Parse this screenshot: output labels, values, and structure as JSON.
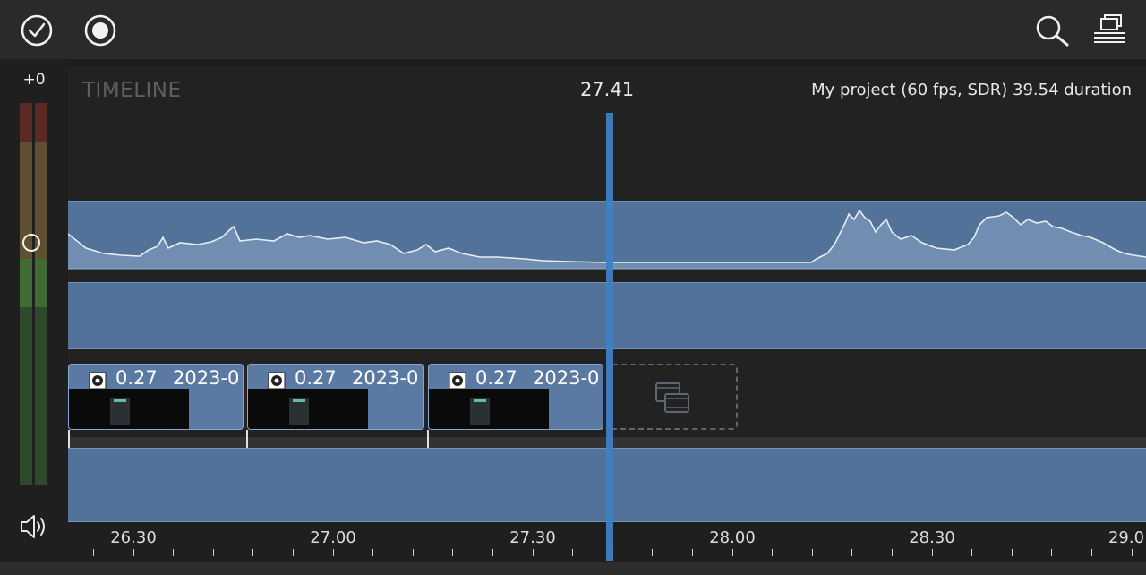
{
  "toolbar": {
    "done_icon": "checkmark-circle-icon",
    "record_icon": "record-circle-icon",
    "search_icon": "magnifier-icon",
    "layout_icon": "stacked-layers-icon"
  },
  "meter": {
    "gain_label": "+0",
    "colors": {
      "red": "#5c2a26",
      "yellow": "#5e5030",
      "green": "#2d4a2a"
    }
  },
  "timeline": {
    "title": "TIMELINE",
    "current_time": "27.41",
    "project_info": "My project (60 fps, SDR)  39.54 duration"
  },
  "clips": [
    {
      "duration": "0.27",
      "date": "2023-0"
    },
    {
      "duration": "0.27",
      "date": "2023-0"
    },
    {
      "duration": "0.27",
      "date": "2023-0"
    }
  ],
  "ruler": {
    "labels": [
      "26.30",
      "27.00",
      "27.30",
      "28.00",
      "28.30",
      "29.0"
    ]
  },
  "colors": {
    "track_blue": "#53729a",
    "playhead_blue": "#3f7fc4"
  }
}
